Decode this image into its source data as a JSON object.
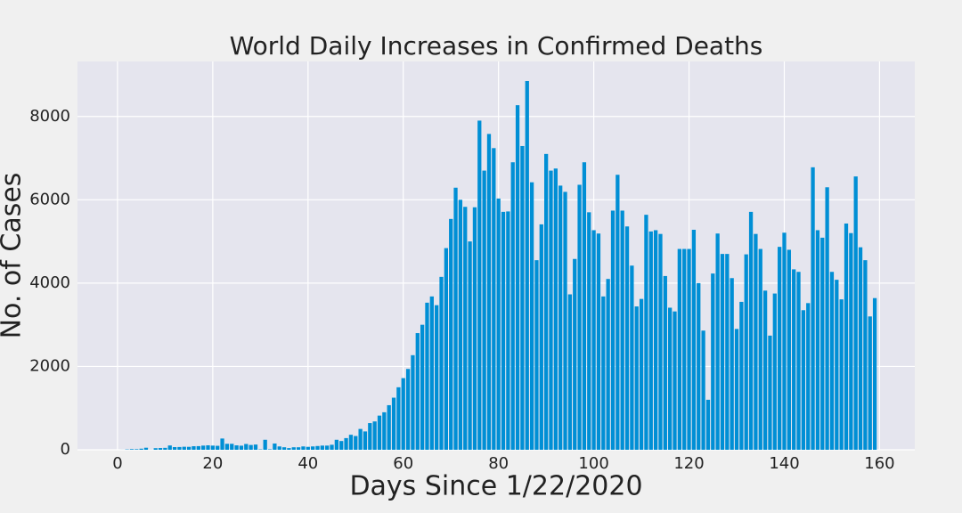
{
  "chart_data": {
    "type": "bar",
    "title": "World Daily Increases in Confirmed Deaths",
    "xlabel": "Days Since 1/22/2020",
    "ylabel": "No. of Cases",
    "color": "#008fd5",
    "grid": true,
    "xlim": [
      -8.4,
      167.4
    ],
    "ylim": [
      0,
      9320
    ],
    "xticks": [
      0,
      20,
      40,
      60,
      80,
      100,
      120,
      140,
      160
    ],
    "yticks": [
      0,
      2000,
      4000,
      6000,
      8000
    ],
    "x": [
      0,
      1,
      2,
      3,
      4,
      5,
      6,
      7,
      8,
      9,
      10,
      11,
      12,
      13,
      14,
      15,
      16,
      17,
      18,
      19,
      20,
      21,
      22,
      23,
      24,
      25,
      26,
      27,
      28,
      29,
      30,
      31,
      32,
      33,
      34,
      35,
      36,
      37,
      38,
      39,
      40,
      41,
      42,
      43,
      44,
      45,
      46,
      47,
      48,
      49,
      50,
      51,
      52,
      53,
      54,
      55,
      56,
      57,
      58,
      59,
      60,
      61,
      62,
      63,
      64,
      65,
      66,
      67,
      68,
      69,
      70,
      71,
      72,
      73,
      74,
      75,
      76,
      77,
      78,
      79,
      80,
      81,
      82,
      83,
      84,
      85,
      86,
      87,
      88,
      89,
      90,
      91,
      92,
      93,
      94,
      95,
      96,
      97,
      98,
      99,
      100,
      101,
      102,
      103,
      104,
      105,
      106,
      107,
      108,
      109,
      110,
      111,
      112,
      113,
      114,
      115,
      116,
      117,
      118,
      119,
      120,
      121,
      122,
      123,
      124,
      125,
      126,
      127,
      128,
      129,
      130,
      131,
      132,
      133,
      134,
      135,
      136,
      137,
      138,
      139,
      140,
      141,
      142,
      143,
      144,
      145,
      146,
      147,
      148,
      149,
      150,
      151,
      152,
      153,
      154,
      155,
      156,
      157,
      158,
      159
    ],
    "values": [
      0,
      1,
      8,
      16,
      14,
      26,
      49,
      2,
      38,
      42,
      46,
      103,
      64,
      66,
      72,
      70,
      85,
      87,
      100,
      107,
      100,
      95,
      270,
      143,
      143,
      106,
      98,
      139,
      115,
      125,
      10,
      240,
      12,
      150,
      80,
      60,
      40,
      60,
      60,
      80,
      70,
      80,
      90,
      100,
      100,
      120,
      240,
      210,
      280,
      360,
      330,
      500,
      440,
      640,
      680,
      820,
      900,
      1070,
      1250,
      1500,
      1720,
      1940,
      2270,
      2800,
      3000,
      3530,
      3680,
      3470,
      4150,
      4840,
      5540,
      6290,
      6000,
      5830,
      5000,
      5820,
      7900,
      6700,
      7580,
      7240,
      6030,
      5710,
      5720,
      6900,
      8270,
      7290,
      8850,
      6420,
      4550,
      5410,
      7100,
      6700,
      6750,
      6340,
      6190,
      3730,
      4580,
      6360,
      6900,
      5700,
      5270,
      5190,
      3680,
      4100,
      5740,
      6600,
      5740,
      5360,
      4420,
      3440,
      3620,
      5640,
      5240,
      5270,
      5180,
      4170,
      3410,
      3320,
      4820,
      4820,
      4820,
      5280,
      4000,
      2860,
      1200,
      4230,
      5190,
      4700,
      4700,
      4120,
      2900,
      3550,
      4690,
      5710,
      5180,
      4820,
      3820,
      2740,
      3750,
      4870,
      5210,
      4800,
      4330,
      4270,
      3350,
      3520,
      6780,
      5270,
      5090,
      6300,
      4270,
      4080,
      3610,
      5430,
      5200,
      6560,
      4860,
      4550,
      3200,
      3640
    ]
  }
}
